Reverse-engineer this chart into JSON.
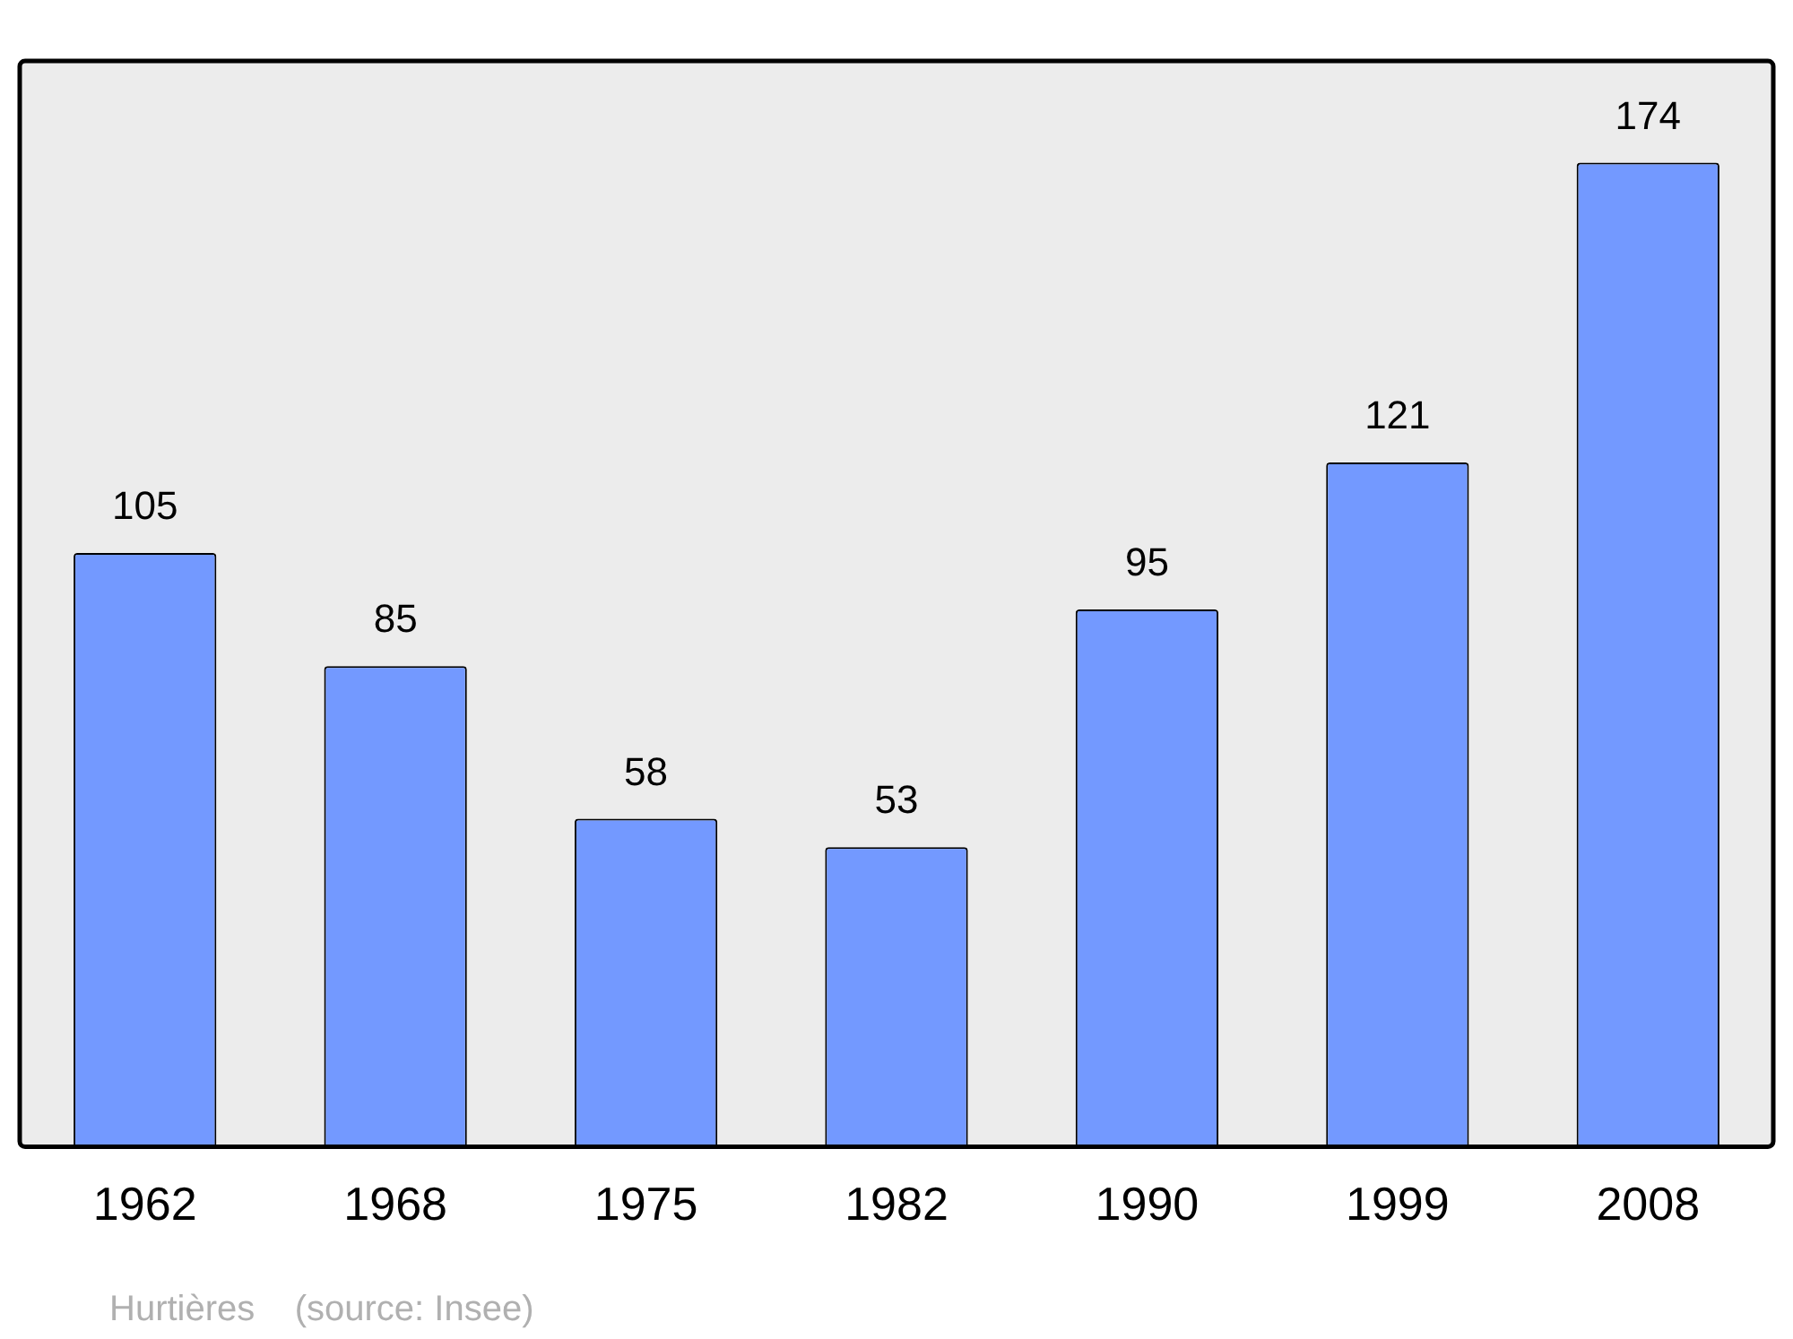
{
  "chart_data": {
    "type": "bar",
    "categories": [
      "1962",
      "1968",
      "1975",
      "1982",
      "1990",
      "1999",
      "2008"
    ],
    "values": [
      105,
      85,
      58,
      53,
      95,
      121,
      174
    ],
    "color": "#7399ff",
    "ylim": [
      0,
      192
    ],
    "data_labels": true,
    "grid": false,
    "legend": false,
    "annotations": [
      "Hurtières    (source: Insee)"
    ]
  }
}
